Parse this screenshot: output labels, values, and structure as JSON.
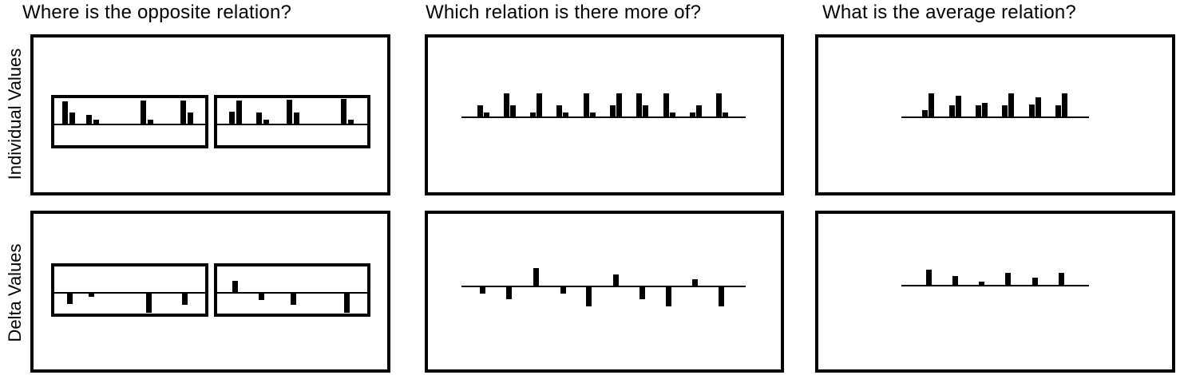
{
  "columns": [
    {
      "title": "Where is the opposite relation?"
    },
    {
      "title": "Which relation is there more of?"
    },
    {
      "title": "What is the average relation?"
    }
  ],
  "rows": [
    {
      "label": "Individual Values"
    },
    {
      "label": "Delta Values"
    }
  ],
  "panels": {
    "opposite_individual": {
      "groups": [
        [
          [
            28,
            14
          ],
          [
            11,
            5
          ],
          [
            29,
            5
          ],
          [
            29,
            14
          ]
        ],
        [
          [
            15,
            29
          ],
          [
            14,
            5
          ],
          [
            30,
            14
          ],
          [
            31,
            5
          ]
        ]
      ]
    },
    "more_individual": {
      "groups": [
        [
          14,
          5
        ],
        [
          29,
          14
        ],
        [
          5,
          29
        ],
        [
          14,
          5
        ],
        [
          29,
          5
        ],
        [
          14,
          29
        ],
        [
          29,
          14
        ],
        [
          29,
          5
        ],
        [
          5,
          14
        ],
        [
          29,
          5
        ]
      ]
    },
    "average_individual": {
      "groups": [
        [
          8,
          29
        ],
        [
          14,
          26
        ],
        [
          14,
          17
        ],
        [
          14,
          29
        ],
        [
          15,
          24
        ],
        [
          14,
          29
        ]
      ]
    },
    "opposite_delta": {
      "groups": [
        [
          -14,
          -5,
          -25,
          -15
        ],
        [
          15,
          -9,
          -15,
          -25
        ]
      ]
    },
    "more_delta": {
      "values": [
        -9,
        -16,
        23,
        -9,
        -25,
        15,
        -16,
        -25,
        9,
        -25
      ]
    },
    "average_delta": {
      "values": [
        20,
        12,
        5,
        16,
        10,
        16
      ]
    }
  }
}
